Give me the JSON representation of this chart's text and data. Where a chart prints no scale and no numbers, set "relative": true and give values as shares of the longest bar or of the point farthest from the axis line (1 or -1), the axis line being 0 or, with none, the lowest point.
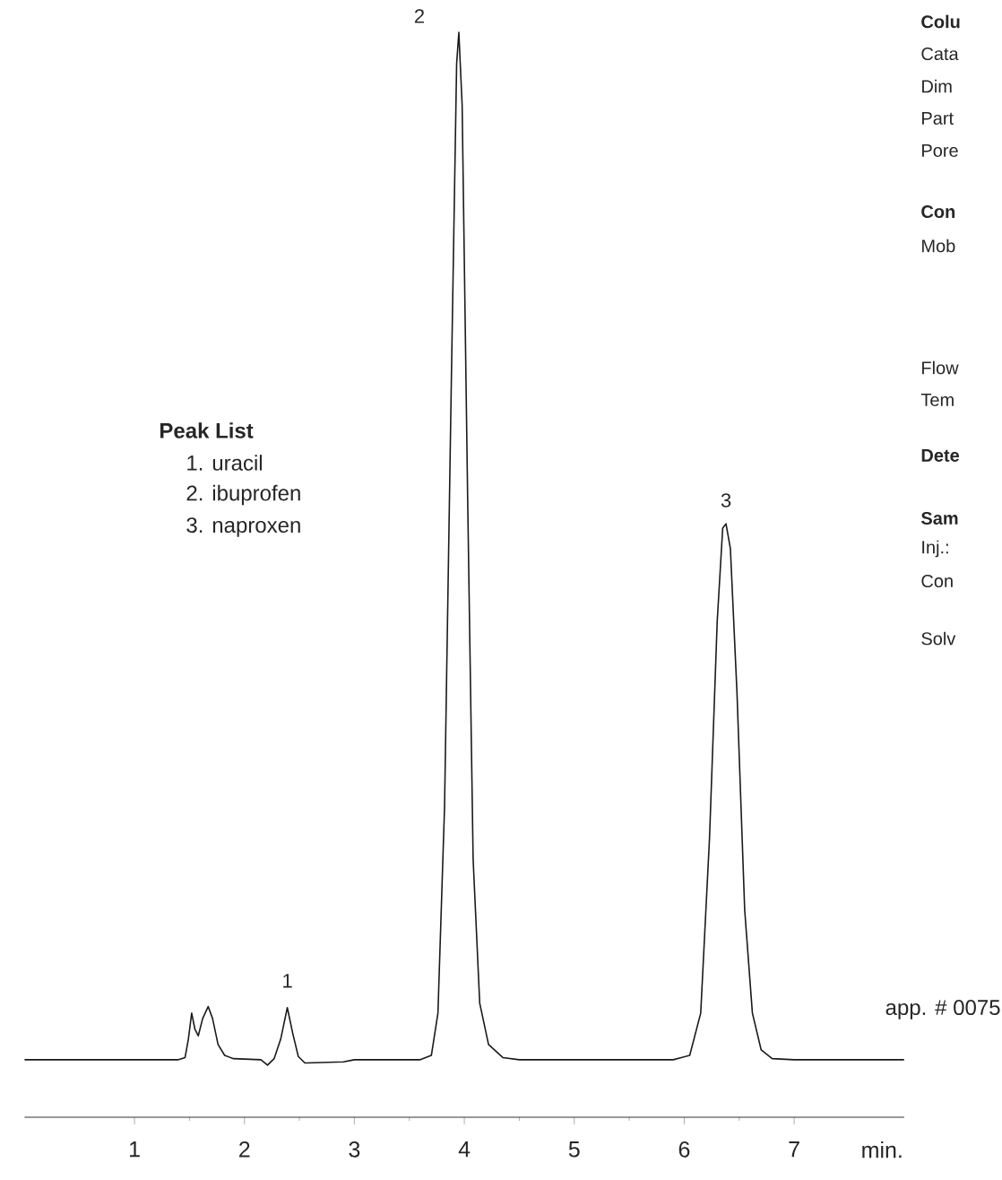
{
  "chart_data": {
    "type": "line",
    "relative": true,
    "xlabel": "min.",
    "xlim": [
      0,
      8
    ],
    "xticks": [
      1,
      2,
      3,
      4,
      5,
      6,
      7
    ],
    "series": [
      {
        "color": "#1a1a1a",
        "x": [
          0,
          1.4,
          1.46,
          1.49,
          1.52,
          1.55,
          1.58,
          1.62,
          1.67,
          1.71,
          1.76,
          1.82,
          1.9,
          2.15,
          2.21,
          2.27,
          2.33,
          2.39,
          2.44,
          2.49,
          2.55,
          2.9,
          3.0,
          3.6,
          3.7,
          3.76,
          3.82,
          3.88,
          3.93,
          3.95,
          3.98,
          4.03,
          4.08,
          4.14,
          4.22,
          4.35,
          4.5,
          5.9,
          6.05,
          6.15,
          6.23,
          6.3,
          6.35,
          6.38,
          6.42,
          6.48,
          6.55,
          6.62,
          6.7,
          6.8,
          7.0,
          8.0
        ],
        "values": [
          0.053,
          0.053,
          0.055,
          0.072,
          0.096,
          0.081,
          0.075,
          0.091,
          0.102,
          0.091,
          0.067,
          0.057,
          0.054,
          0.053,
          0.048,
          0.054,
          0.072,
          0.101,
          0.077,
          0.056,
          0.05,
          0.051,
          0.053,
          0.053,
          0.057,
          0.096,
          0.286,
          0.667,
          0.971,
          1.0,
          0.933,
          0.572,
          0.238,
          0.105,
          0.067,
          0.055,
          0.053,
          0.053,
          0.057,
          0.096,
          0.257,
          0.457,
          0.543,
          0.547,
          0.524,
          0.391,
          0.191,
          0.096,
          0.062,
          0.054,
          0.053,
          0.053
        ]
      }
    ],
    "annotations": [
      {
        "text": "1",
        "x": 2.39,
        "y": 0.101
      },
      {
        "text": "2",
        "x": 3.95,
        "y": 1.0
      },
      {
        "text": "3",
        "x": 6.38,
        "y": 0.547
      },
      "Peak List",
      "1.  uracil",
      "2.  ibuprofen",
      "3.  naproxen",
      "app. # 0075",
      "Colu",
      "Cata",
      "Dim",
      "Part",
      "Pore",
      "Con",
      "Mob",
      "Flow",
      "Tem",
      "Dete",
      "Sam",
      "Inj.:",
      "Con",
      "Solv"
    ]
  }
}
